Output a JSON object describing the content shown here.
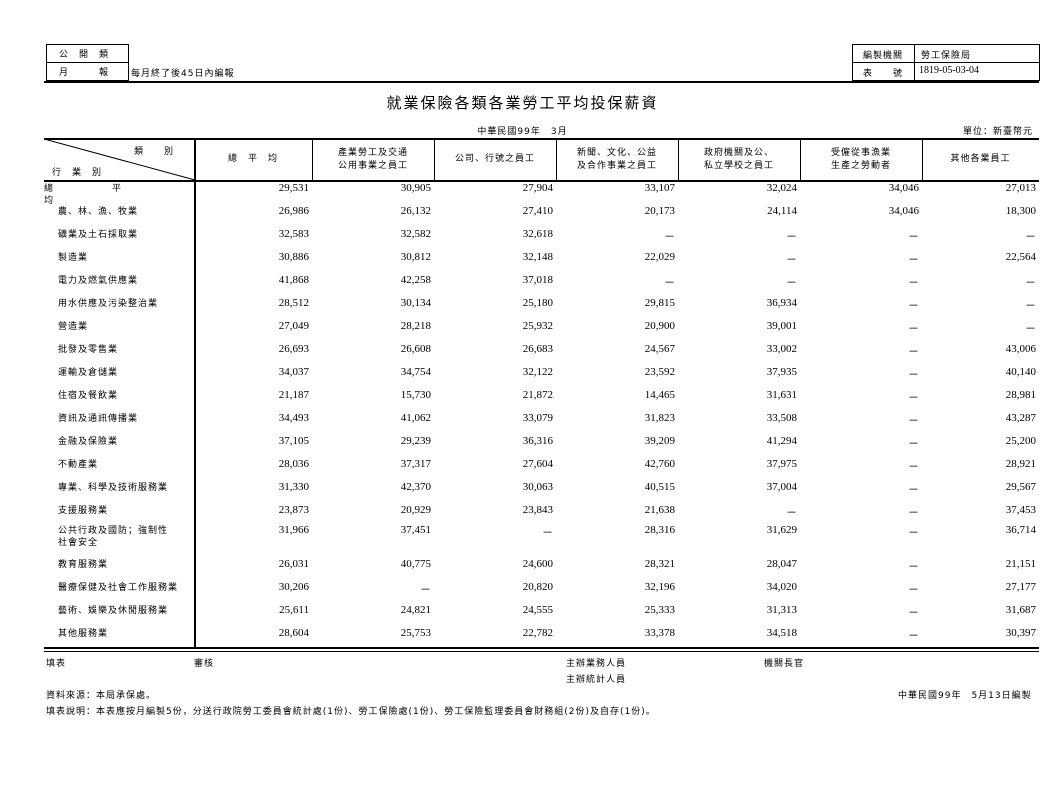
{
  "header_left": {
    "row1": "公　開　類",
    "row2_label": "月　　　報",
    "row2_value": "每月終了後45日內編報"
  },
  "header_right": {
    "org_label": "編製機關",
    "org_value": "勞工保險局",
    "form_label": "表　　號",
    "form_value": "1819-05-03-04"
  },
  "title": "就業保險各類各業勞工平均投保薪資",
  "date": "中華民國99年　3月",
  "unit": "單位：新臺幣元",
  "corner": {
    "top": "類　　別",
    "bottom": "行　業　別"
  },
  "columns": [
    "總　平　均",
    "產業勞工及交通\n公用事業之員工",
    "公司、行號之員工",
    "新聞、文化、公益\n及合作事業之員工",
    "政府機關及公、\n私立學校之員工",
    "受僱從事漁業\n生產之勞動者",
    "其他各業員工"
  ],
  "rows": [
    {
      "label": "總　　　平　　　均",
      "values": [
        "29,531",
        "30,905",
        "27,904",
        "33,107",
        "32,024",
        "34,046",
        "27,013"
      ]
    },
    {
      "label": "農、林、漁、牧業",
      "values": [
        "26,986",
        "26,132",
        "27,410",
        "20,173",
        "24,114",
        "34,046",
        "18,300"
      ]
    },
    {
      "label": "礦業及土石採取業",
      "values": [
        "32,583",
        "32,582",
        "32,618",
        "－",
        "－",
        "－",
        "－"
      ]
    },
    {
      "label": "製造業",
      "values": [
        "30,886",
        "30,812",
        "32,148",
        "22,029",
        "－",
        "－",
        "22,564"
      ]
    },
    {
      "label": "電力及燃氣供應業",
      "values": [
        "41,868",
        "42,258",
        "37,018",
        "－",
        "－",
        "－",
        "－"
      ]
    },
    {
      "label": "用水供應及污染整治業",
      "values": [
        "28,512",
        "30,134",
        "25,180",
        "29,815",
        "36,934",
        "－",
        "－"
      ]
    },
    {
      "label": "營造業",
      "values": [
        "27,049",
        "28,218",
        "25,932",
        "20,900",
        "39,001",
        "－",
        "－"
      ]
    },
    {
      "label": "批發及零售業",
      "values": [
        "26,693",
        "26,608",
        "26,683",
        "24,567",
        "33,002",
        "－",
        "43,006"
      ]
    },
    {
      "label": "運輸及倉儲業",
      "values": [
        "34,037",
        "34,754",
        "32,122",
        "23,592",
        "37,935",
        "－",
        "40,140"
      ]
    },
    {
      "label": "住宿及餐飲業",
      "values": [
        "21,187",
        "15,730",
        "21,872",
        "14,465",
        "31,631",
        "－",
        "28,981"
      ]
    },
    {
      "label": "資訊及通訊傳播業",
      "values": [
        "34,493",
        "41,062",
        "33,079",
        "31,823",
        "33,508",
        "－",
        "43,287"
      ]
    },
    {
      "label": "金融及保險業",
      "values": [
        "37,105",
        "29,239",
        "36,316",
        "39,209",
        "41,294",
        "－",
        "25,200"
      ]
    },
    {
      "label": "不動產業",
      "values": [
        "28,036",
        "37,317",
        "27,604",
        "42,760",
        "37,975",
        "－",
        "28,921"
      ]
    },
    {
      "label": "專業、科學及技術服務業",
      "values": [
        "31,330",
        "42,370",
        "30,063",
        "40,515",
        "37,004",
        "－",
        "29,567"
      ]
    },
    {
      "label": "支援服務業",
      "values": [
        "23,873",
        "20,929",
        "23,843",
        "21,638",
        "－",
        "－",
        "37,453"
      ]
    },
    {
      "label": "公共行政及國防；強制性\n社會安全",
      "values": [
        "31,966",
        "37,451",
        "－",
        "28,316",
        "31,629",
        "－",
        "36,714"
      ]
    },
    {
      "label": "教育服務業",
      "values": [
        "26,031",
        "40,775",
        "24,600",
        "28,321",
        "28,047",
        "－",
        "21,151"
      ]
    },
    {
      "label": "醫療保健及社會工作服務業",
      "values": [
        "30,206",
        "－",
        "20,820",
        "32,196",
        "34,020",
        "－",
        "27,177"
      ]
    },
    {
      "label": "藝術、娛樂及休閒服務業",
      "values": [
        "25,611",
        "24,821",
        "24,555",
        "25,333",
        "31,313",
        "－",
        "31,687"
      ]
    },
    {
      "label": "其他服務業",
      "values": [
        "28,604",
        "25,753",
        "22,782",
        "33,378",
        "34,518",
        "－",
        "30,397"
      ]
    }
  ],
  "signatures": {
    "filler": "填表",
    "reviewer": "審核",
    "business": "主辦業務人員",
    "statistics": "主辦統計人員",
    "head": "機關長官"
  },
  "source": "資料來源：本局承保處。",
  "note": "填表說明：本表應按月編製5份，分送行政院勞工委員會統計處(1份)、勞工保險處(1份)、勞工保險監理委員會財務組(2份)及自存(1份)。",
  "compiled": "中華民國99年　5月13日編製"
}
